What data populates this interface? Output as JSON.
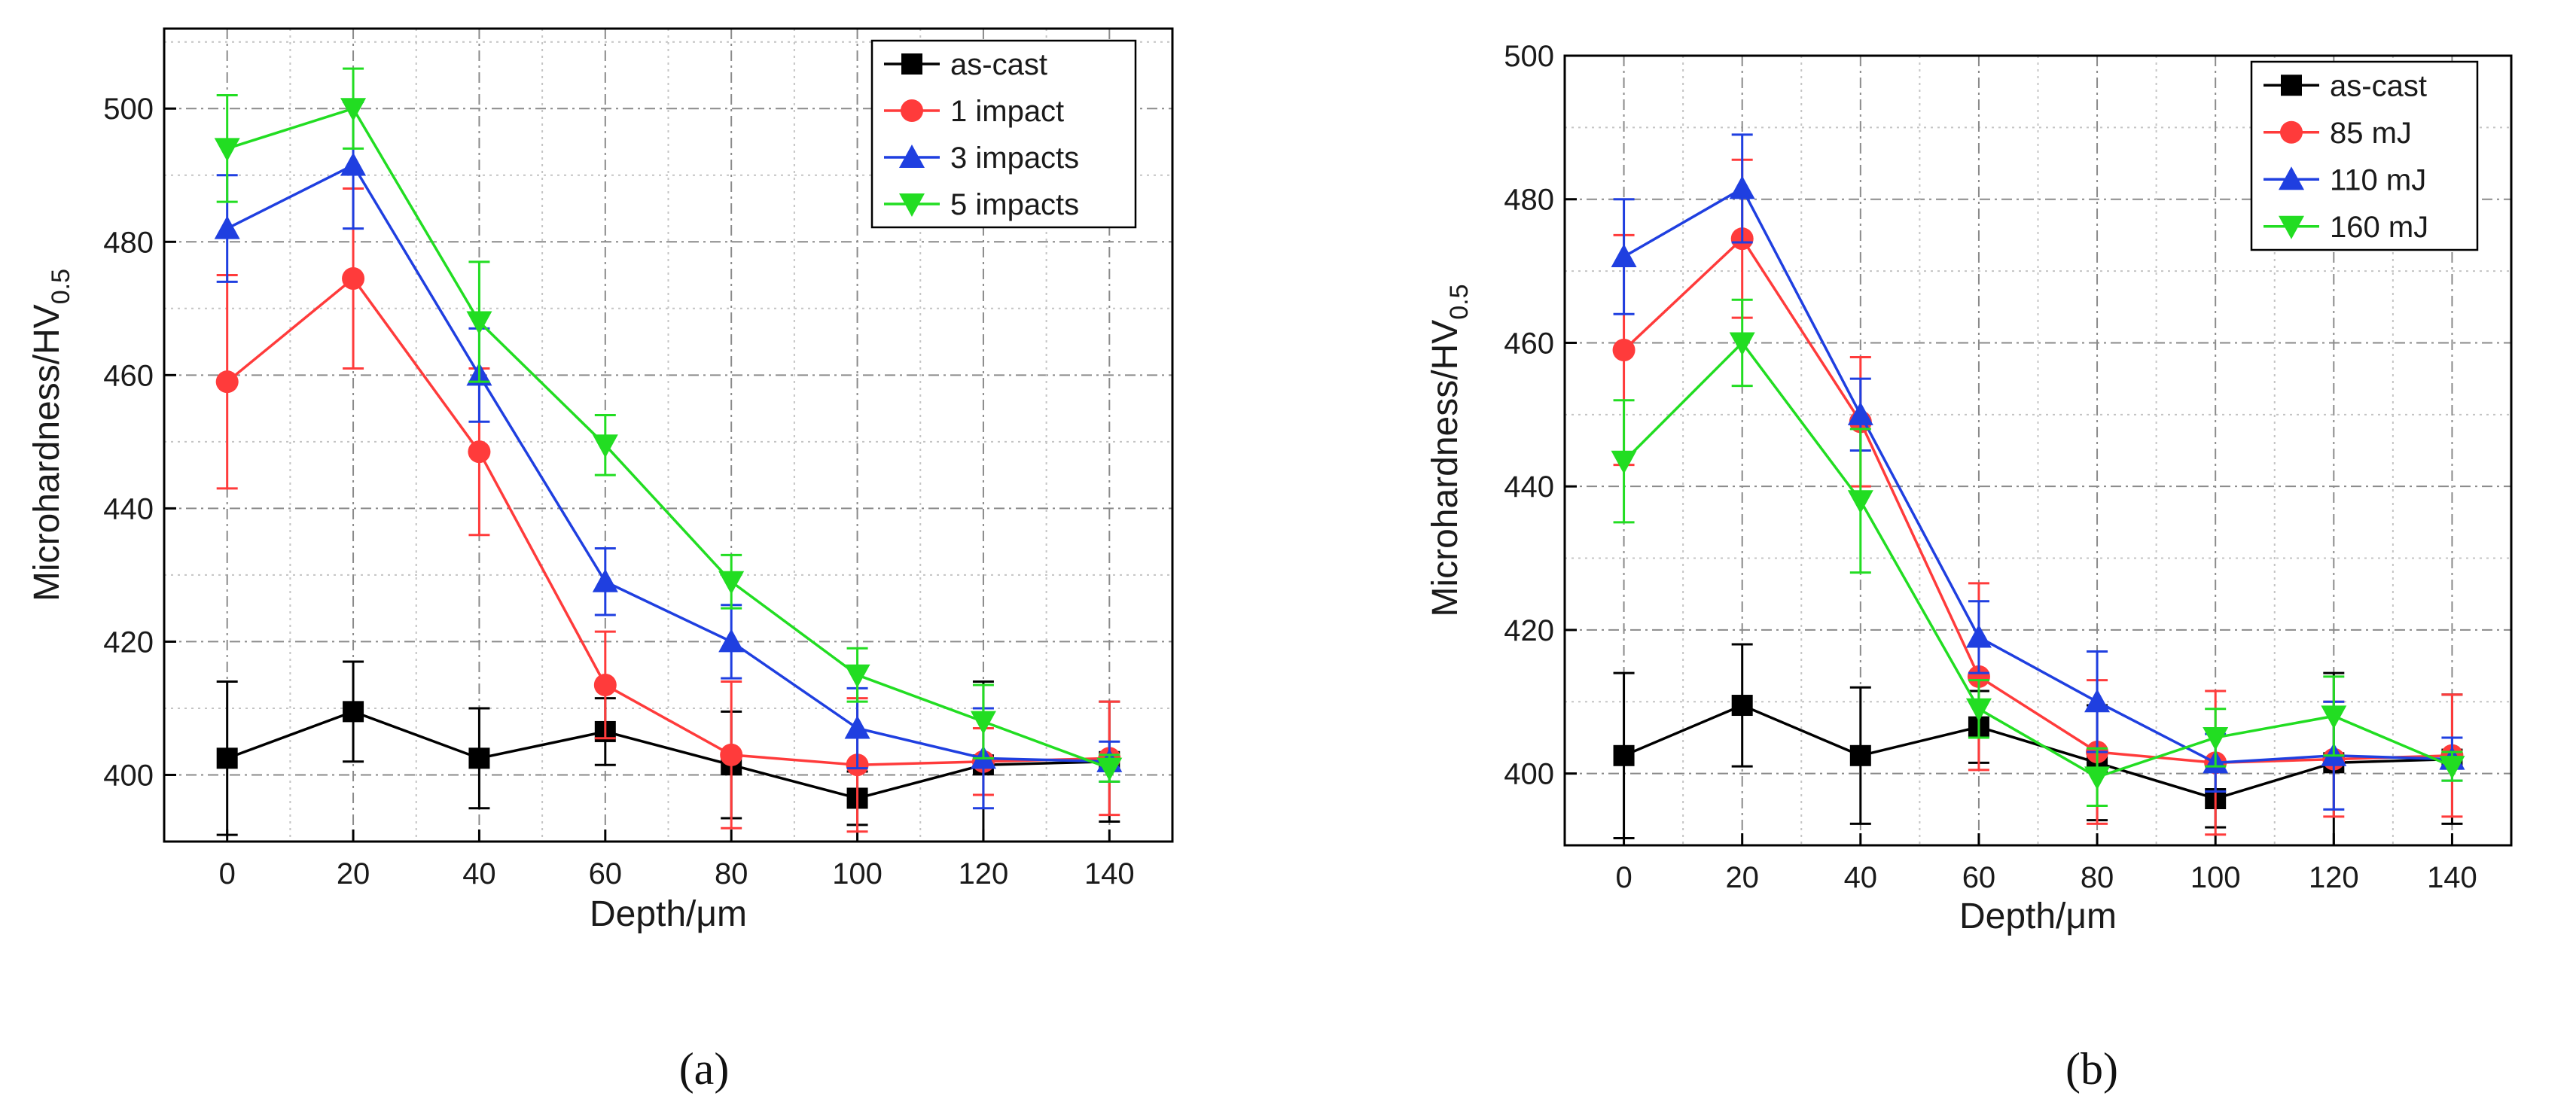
{
  "chart_data": [
    {
      "type": "line",
      "panel": "a",
      "caption": "(a)",
      "xlabel": "Depth/μm",
      "ylabel_main": "Microhardness/HV",
      "ylabel_sub": "0.5",
      "x": [
        0,
        20,
        40,
        60,
        80,
        100,
        120,
        140
      ],
      "xlim": [
        -10,
        150
      ],
      "ylim": [
        390,
        512
      ],
      "yticks": [
        400,
        420,
        440,
        460,
        480,
        500
      ],
      "xticks": [
        0,
        20,
        40,
        60,
        80,
        100,
        120,
        140
      ],
      "grid": true,
      "legend_position": "top-right",
      "series": [
        {
          "name": "as-cast",
          "color": "#000000",
          "marker": "square",
          "values": [
            402.5,
            409.5,
            402.5,
            406.5,
            401.5,
            396.5,
            401.5,
            402
          ],
          "errors": [
            11.5,
            7.5,
            7.5,
            5,
            8,
            4,
            12.5,
            9
          ]
        },
        {
          "name": "1 impact",
          "color": "#ff3b3b",
          "marker": "circle",
          "values": [
            459,
            474.5,
            448.5,
            413.5,
            403,
            401.5,
            402,
            402.5
          ],
          "errors": [
            16,
            13.5,
            12.5,
            8,
            11,
            10,
            5,
            8.5
          ]
        },
        {
          "name": "3 impacts",
          "color": "#1f3fe0",
          "marker": "triangle-up",
          "values": [
            482,
            491.5,
            460,
            429,
            420,
            407,
            402.5,
            402
          ],
          "errors": [
            8,
            9.5,
            7,
            5,
            5.5,
            6,
            7.5,
            3
          ]
        },
        {
          "name": "5 impacts",
          "color": "#22dd22",
          "marker": "triangle-down",
          "values": [
            494,
            500,
            468,
            449.5,
            429,
            415,
            408,
            401
          ],
          "errors": [
            8,
            6,
            9,
            4.5,
            4,
            4,
            5.5,
            2
          ]
        }
      ]
    },
    {
      "type": "line",
      "panel": "b",
      "caption": "(b)",
      "xlabel": "Depth/μm",
      "ylabel_main": "Microhardness/HV",
      "ylabel_sub": "0.5",
      "x": [
        0,
        20,
        40,
        60,
        80,
        100,
        120,
        140
      ],
      "xlim": [
        -10,
        150
      ],
      "ylim": [
        390,
        500
      ],
      "yticks": [
        400,
        420,
        440,
        460,
        480,
        500
      ],
      "xticks": [
        0,
        20,
        40,
        60,
        80,
        100,
        120,
        140
      ],
      "grid": true,
      "legend_position": "top-right",
      "series": [
        {
          "name": "as-cast",
          "color": "#000000",
          "marker": "square",
          "values": [
            402.5,
            409.5,
            402.5,
            406.5,
            401.5,
            396.5,
            401.5,
            402
          ],
          "errors": [
            11.5,
            8.5,
            9.5,
            5,
            8,
            4,
            12.5,
            9
          ]
        },
        {
          "name": "85 mJ",
          "color": "#ff3b3b",
          "marker": "circle",
          "values": [
            459,
            474.5,
            449,
            413.5,
            403,
            401.5,
            402,
            402.5
          ],
          "errors": [
            16,
            11,
            9,
            13,
            10,
            10,
            8,
            8.5
          ]
        },
        {
          "name": "110 mJ",
          "color": "#1f3fe0",
          "marker": "triangle-up",
          "values": [
            472,
            481.5,
            450,
            419,
            410,
            401.5,
            402.5,
            402
          ],
          "errors": [
            8,
            7.5,
            5,
            5,
            7,
            4,
            7.5,
            3
          ]
        },
        {
          "name": "160 mJ",
          "color": "#22dd22",
          "marker": "triangle-down",
          "values": [
            443.5,
            460,
            438,
            409,
            399.5,
            405,
            408,
            401
          ],
          "errors": [
            8.5,
            6,
            10,
            4,
            4,
            4,
            5.5,
            2
          ]
        }
      ]
    }
  ]
}
